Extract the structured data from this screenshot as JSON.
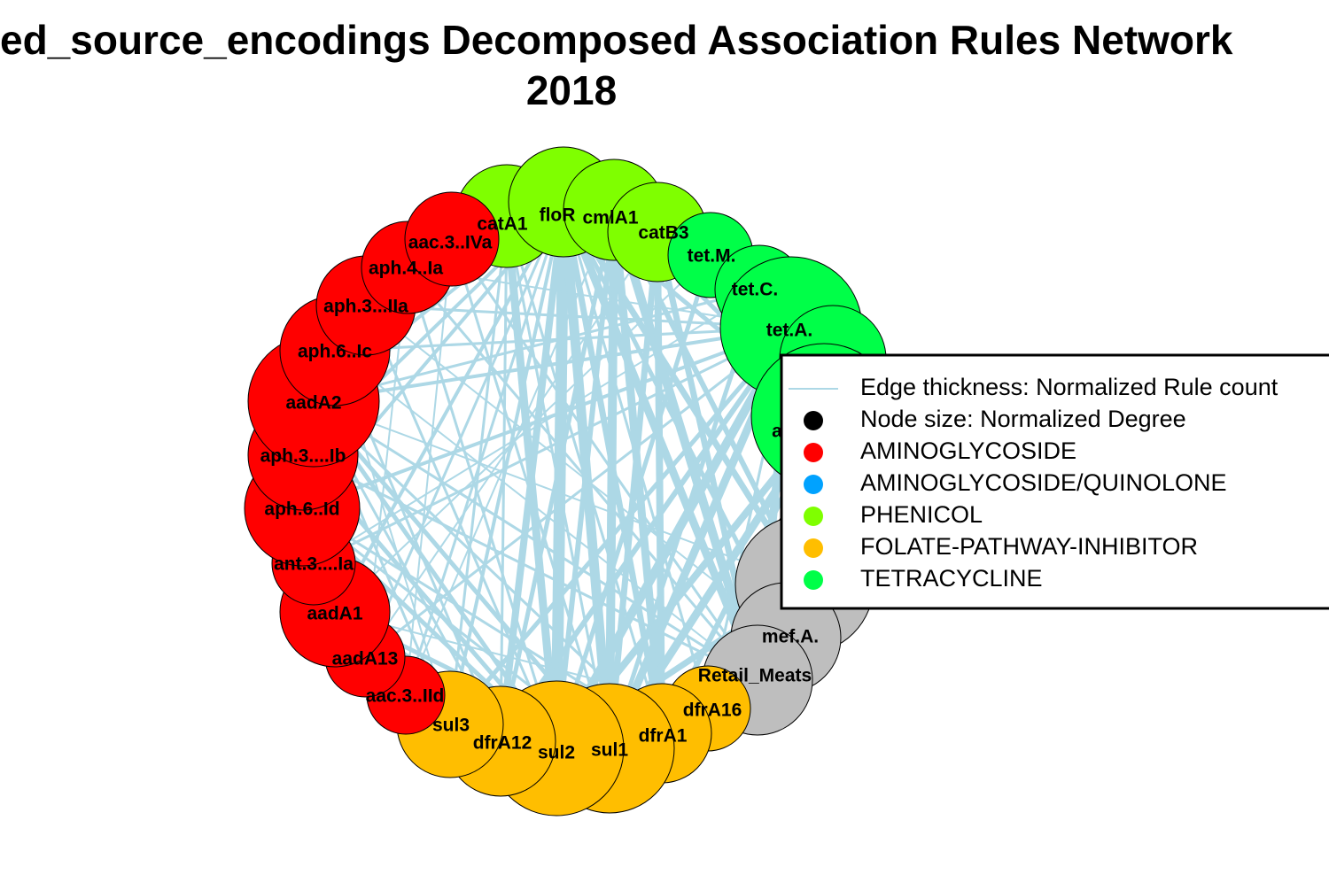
{
  "title": {
    "line1": "ed_source_encodings Decomposed Association Rules Network",
    "line2": "2018"
  },
  "legend": {
    "items": [
      {
        "label": "Edge thickness: Normalized Rule count",
        "kind": "line",
        "color": "#add8e6"
      },
      {
        "label": "Node size: Normalized Degree",
        "kind": "dot",
        "color": "#000000"
      },
      {
        "label": "AMINOGLYCOSIDE",
        "kind": "dot",
        "color": "#ff0000"
      },
      {
        "label": "AMINOGLYCOSIDE/QUINOLONE",
        "kind": "dot",
        "color": "#00a2ff"
      },
      {
        "label": "PHENICOL",
        "kind": "dot",
        "color": "#7fff00"
      },
      {
        "label": "FOLATE-PATHWAY-INHIBITOR",
        "kind": "dot",
        "color": "#ffbe00"
      },
      {
        "label": "TETRACYCLINE",
        "kind": "dot",
        "color": "#00ff48"
      }
    ]
  },
  "colors": {
    "edge": "#add8e6",
    "AMINOGLYCOSIDE": "#ff0000",
    "AMINOGLYCOSIDE/QUINOLONE": "#00a2ff",
    "PHENICOL": "#7fff00",
    "FOLATE-PATHWAY-INHIBITOR": "#ffbe00",
    "TETRACYCLINE": "#00ff48",
    "OTHER": "#bebebe"
  },
  "nodes": [
    {
      "id": "catA1",
      "label": "catA1",
      "class": "PHENICOL"
    },
    {
      "id": "floR",
      "label": "floR",
      "class": "PHENICOL"
    },
    {
      "id": "cmlA1",
      "label": "cmlA1",
      "class": "PHENICOL"
    },
    {
      "id": "catB3",
      "label": "catB3",
      "class": "PHENICOL"
    },
    {
      "id": "tetM",
      "label": "tet.M.",
      "class": "TETRACYCLINE"
    },
    {
      "id": "tetC",
      "label": "tet.C.",
      "class": "TETRACYCLINE"
    },
    {
      "id": "tetA",
      "label": "tet.A.",
      "class": "TETRACYCLINE"
    },
    {
      "id": "tet4",
      "label": "",
      "class": "TETRACYCLINE"
    },
    {
      "id": "a5",
      "label": "a",
      "class": "TETRACYCLINE"
    },
    {
      "id": "g1",
      "label": "",
      "class": "OTHER"
    },
    {
      "id": "g2",
      "label": "",
      "class": "OTHER"
    },
    {
      "id": "mefA",
      "label": "mef.A.",
      "class": "OTHER"
    },
    {
      "id": "retail",
      "label": "Retail_Meats",
      "class": "OTHER"
    },
    {
      "id": "dfrA16",
      "label": "dfrA16",
      "class": "FOLATE-PATHWAY-INHIBITOR"
    },
    {
      "id": "dfrA1",
      "label": "dfrA1",
      "class": "FOLATE-PATHWAY-INHIBITOR"
    },
    {
      "id": "sul1",
      "label": "sul1",
      "class": "FOLATE-PATHWAY-INHIBITOR"
    },
    {
      "id": "sul2",
      "label": "sul2",
      "class": "FOLATE-PATHWAY-INHIBITOR"
    },
    {
      "id": "dfrA12",
      "label": "dfrA12",
      "class": "FOLATE-PATHWAY-INHIBITOR"
    },
    {
      "id": "sul3",
      "label": "sul3",
      "class": "FOLATE-PATHWAY-INHIBITOR"
    },
    {
      "id": "aac3IId",
      "label": "aac.3..IId",
      "class": "AMINOGLYCOSIDE"
    },
    {
      "id": "aadA13",
      "label": "aadA13",
      "class": "AMINOGLYCOSIDE"
    },
    {
      "id": "aadA1",
      "label": "aadA1",
      "class": "AMINOGLYCOSIDE"
    },
    {
      "id": "ant3Ia",
      "label": "ant.3....Ia",
      "class": "AMINOGLYCOSIDE"
    },
    {
      "id": "aph6Id",
      "label": "aph.6..Id",
      "class": "AMINOGLYCOSIDE"
    },
    {
      "id": "aph3Ib",
      "label": "aph.3....Ib",
      "class": "AMINOGLYCOSIDE"
    },
    {
      "id": "aadA2",
      "label": "aadA2",
      "class": "AMINOGLYCOSIDE"
    },
    {
      "id": "aph6Ic",
      "label": "aph.6..Ic",
      "class": "AMINOGLYCOSIDE"
    },
    {
      "id": "aph3IIa",
      "label": "aph.3...IIa",
      "class": "AMINOGLYCOSIDE"
    },
    {
      "id": "aph4Ia",
      "label": "aph.4..Ia",
      "class": "AMINOGLYCOSIDE"
    },
    {
      "id": "aac3IVa",
      "label": "aac.3..IVa",
      "class": "AMINOGLYCOSIDE"
    }
  ]
}
